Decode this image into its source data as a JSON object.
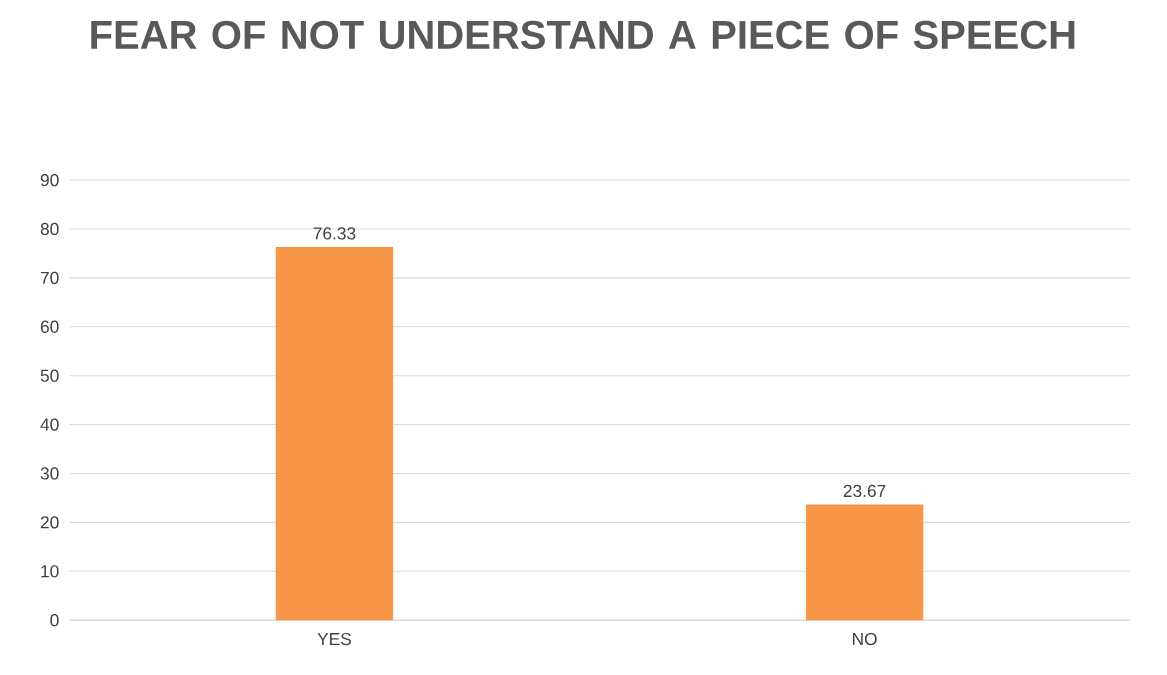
{
  "chart_data": {
    "type": "bar",
    "title": "FEAR OF NOT UNDERSTAND A PIECE OF SPEECH",
    "categories": [
      "YES",
      "NO"
    ],
    "values": [
      76.33,
      23.67
    ],
    "color": "#f79646",
    "ylim": [
      0,
      90
    ],
    "yticks": [
      0,
      10,
      20,
      30,
      40,
      50,
      60,
      70,
      80,
      90
    ],
    "grid": "y",
    "data_labels": true
  }
}
